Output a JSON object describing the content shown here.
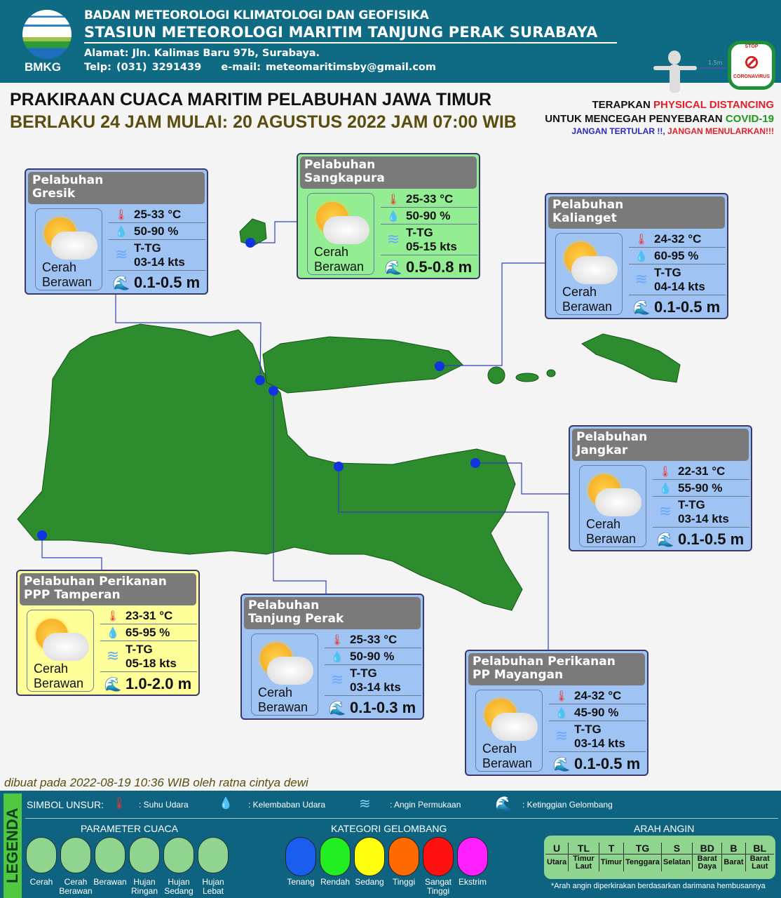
{
  "header": {
    "agency": "BADAN METEOROLOGI KLIMATOLOGI DAN GEOFISIKA",
    "station": "STASIUN METEOROLOGI MARITIM TANJUNG PERAK SURABAYA",
    "address": "Alamat: Jln. Kalimas Baru 97b, Surabaya.",
    "phone": "Telp: (031) 3291439",
    "email": "e-mail: meteomaritimsby@gmail.com",
    "logo_text": "BMKG"
  },
  "title": {
    "main": "PRAKIRAAN CUACA MARITIM PELABUHAN JAWA TIMUR",
    "valid": "BERLAKU 24 JAM MULAI: 20 AGUSTUS 2022 JAM 07:00 WIB"
  },
  "covid": {
    "l1a": "TERAPKAN ",
    "l1b": "PHYSICAL DISTANCING",
    "l2a": "UNTUK MENCEGAH PENYEBARAN ",
    "l2b": "COVID-19",
    "l3a": "JANGAN TERTULAR !!,  ",
    "l3b": "JANGAN MENULARKAN!!!",
    "distance": "1.5m",
    "badge_top": "STOP",
    "badge_bottom": "CORONAVIRUS"
  },
  "ports": [
    {
      "name1": "Pelabuhan",
      "name2": "Gresik",
      "weather1": "Cerah",
      "weather2": "Berawan",
      "temp": "25-33 °C",
      "humidity": "50-90 %",
      "wind_dir": "T-TG",
      "wind_speed": "03-14 kts",
      "wave": "0.1-0.5 m",
      "bg": "#9fc3f3"
    },
    {
      "name1": "Pelabuhan",
      "name2": "Sangkapura",
      "weather1": "Cerah",
      "weather2": "Berawan",
      "temp": "25-33 °C",
      "humidity": "50-90 %",
      "wind_dir": "T-TG",
      "wind_speed": "05-15 kts",
      "wave": "0.5-0.8 m",
      "bg": "#93ee93"
    },
    {
      "name1": "Pelabuhan",
      "name2": "Kalianget",
      "weather1": "Cerah",
      "weather2": "Berawan",
      "temp": "24-32 °C",
      "humidity": "60-95 %",
      "wind_dir": "T-TG",
      "wind_speed": "04-14 kts",
      "wave": "0.1-0.5 m",
      "bg": "#9fc3f3"
    },
    {
      "name1": "Pelabuhan",
      "name2": "Jangkar",
      "weather1": "Cerah",
      "weather2": "Berawan",
      "temp": "22-31 °C",
      "humidity": "55-90 %",
      "wind_dir": "T-TG",
      "wind_speed": "03-14 kts",
      "wave": "0.1-0.5 m",
      "bg": "#9fc3f3"
    },
    {
      "name1": "Pelabuhan Perikanan",
      "name2": "PPP Tamperan",
      "weather1": "Cerah",
      "weather2": "Berawan",
      "temp": "23-31 °C",
      "humidity": "65-95 %",
      "wind_dir": "T-TG",
      "wind_speed": "05-18 kts",
      "wave": "1.0-2.0 m",
      "bg": "#ffff9a"
    },
    {
      "name1": "Pelabuhan",
      "name2": "Tanjung Perak",
      "weather1": "Cerah",
      "weather2": "Berawan",
      "temp": "25-33 °C",
      "humidity": "50-90 %",
      "wind_dir": "T-TG",
      "wind_speed": "03-14 kts",
      "wave": "0.1-0.3 m",
      "bg": "#9fc3f3"
    },
    {
      "name1": "Pelabuhan Perikanan",
      "name2": "PP Mayangan",
      "weather1": "Cerah",
      "weather2": "Berawan",
      "temp": "24-32 °C",
      "humidity": "45-90 %",
      "wind_dir": "T-TG",
      "wind_speed": "03-14 kts",
      "wave": "0.1-0.5 m",
      "bg": "#9fc3f3"
    }
  ],
  "made_by": "dibuat pada 2022-08-19 10:36 WIB oleh ratna cintya dewi",
  "legend": {
    "title": "LEGENDA",
    "symbols_label": "SIMBOL UNSUR:",
    "symbols": [
      ": Suhu Udara",
      ": Kelembaban Udara",
      ": Angin Permukaan",
      ": Ketinggian Gelombang"
    ],
    "weather_title": "PARAMETER CUACA",
    "weather": [
      "Cerah",
      "Cerah Berawan",
      "Berawan",
      "Hujan Ringan",
      "Hujan Sedang",
      "Hujan Lebat"
    ],
    "wave_title": "KATEGORI GELOMBANG",
    "waves": [
      {
        "label": "Tenang",
        "color": "#1a5ef0"
      },
      {
        "label": "Rendah",
        "color": "#22ee22"
      },
      {
        "label": "Sedang",
        "color": "#ffff10"
      },
      {
        "label": "Tinggi",
        "color": "#ff6a00"
      },
      {
        "label": "Sangat Tinggi",
        "color": "#ff1010"
      },
      {
        "label": "Ekstrim",
        "color": "#ff20ff"
      }
    ],
    "wind_title": "ARAH ANGIN",
    "wind_codes": [
      "U",
      "TL",
      "T",
      "TG",
      "S",
      "BD",
      "B",
      "BL"
    ],
    "wind_names": [
      "Utara",
      "Timur Laut",
      "Timur",
      "Tenggara",
      "Selatan",
      "Barat Daya",
      "Barat",
      "Barat Laut"
    ],
    "wind_note": "*Arah angin diperkirakan berdasarkan darimana hembusannya"
  }
}
